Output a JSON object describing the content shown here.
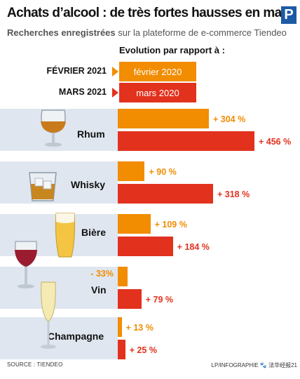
{
  "header": {
    "title": "Achats d’alcool : de très fortes hausses en mars",
    "subtitle_bold": "Recherches enregistrées",
    "subtitle_rest": " sur la plateforme de e-commerce Tiendeo",
    "logo_letter": "P"
  },
  "legend": {
    "heading": "Evolution par rapport à :",
    "items": [
      {
        "label": "FÉVRIER 2021",
        "box": "février 2020",
        "color": "#f28c00"
      },
      {
        "label": "MARS 2021",
        "box": "mars 2020",
        "color": "#e2321e"
      }
    ]
  },
  "colors": {
    "feb": "#f28c00",
    "mar": "#e2321e",
    "row_bg": "#dfe6ef"
  },
  "chart_data": {
    "type": "bar",
    "orientation": "horizontal",
    "title": "Achats d’alcool : de très fortes hausses en mars",
    "subtitle": "Recherches enregistrées sur la plateforme de e-commerce Tiendeo",
    "categories": [
      "Rhum",
      "Whisky",
      "Bière",
      "Vin",
      "Champagne"
    ],
    "series": [
      {
        "name": "février 2020",
        "values": [
          304,
          90,
          109,
          -33,
          13
        ],
        "labels": [
          "+ 304 %",
          "+ 90 %",
          "+ 109 %",
          "- 33%",
          "+ 13 %"
        ]
      },
      {
        "name": "mars 2020",
        "values": [
          456,
          318,
          184,
          79,
          25
        ],
        "labels": [
          "+ 456 %",
          "+ 318 %",
          "+ 184 %",
          "+ 79 %",
          "+ 25 %"
        ]
      }
    ],
    "unit": "%"
  },
  "footer": {
    "source": "SOURCE : TIENDEO",
    "credit": "LP/INFOGRAPHIE",
    "watermark": "🐾 法华经报21"
  }
}
